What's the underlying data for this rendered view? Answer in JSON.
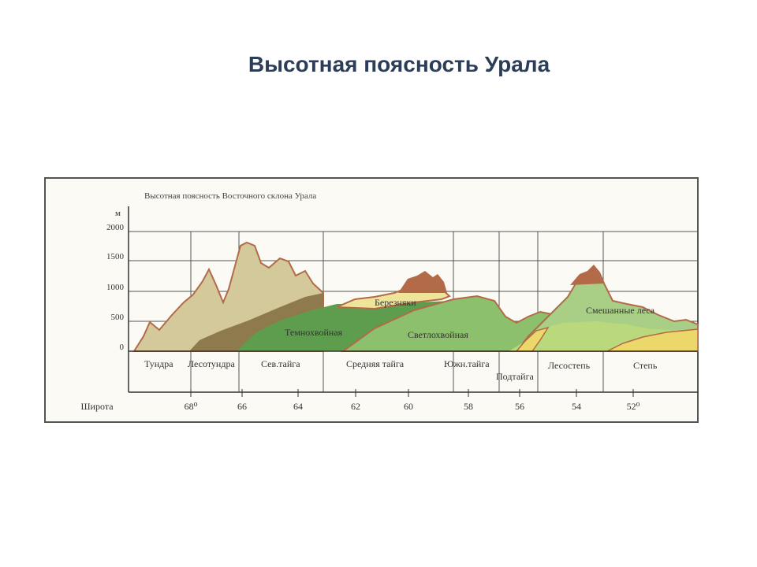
{
  "slide_title": "Высотная поясность Урала",
  "figure": {
    "caption": "Высотная поясность Восточного склона Урала",
    "y_unit": "м",
    "y_ticks": [
      "2000",
      "1500",
      "1000",
      "500",
      "0"
    ],
    "zones_bottom": [
      "Тундра",
      "Лесотундра",
      "Сев.тайга",
      "Средняя тайга",
      "Южн.тайга",
      "Подтайга",
      "Лесостепь",
      "Степь"
    ],
    "zones_inner": [
      "Березняки",
      "Темнохвойная",
      "Светлохвойная",
      "Смешанные леса"
    ],
    "latitude_label": "Широта",
    "latitudes": [
      "68⁰",
      "66",
      "64",
      "62",
      "60",
      "58",
      "56",
      "54",
      "52⁰"
    ]
  },
  "colors": {
    "frame": "#555555",
    "tundra": "#d3c99a",
    "lesotundra": "#8e7a4c",
    "dark_conifer": "#5f9d4e",
    "light_conifer": "#8cc06c",
    "birch": "#efe59a",
    "mixed": "#a8cf85",
    "steppe": "#ecd86a",
    "ridge": "#b26a48"
  }
}
